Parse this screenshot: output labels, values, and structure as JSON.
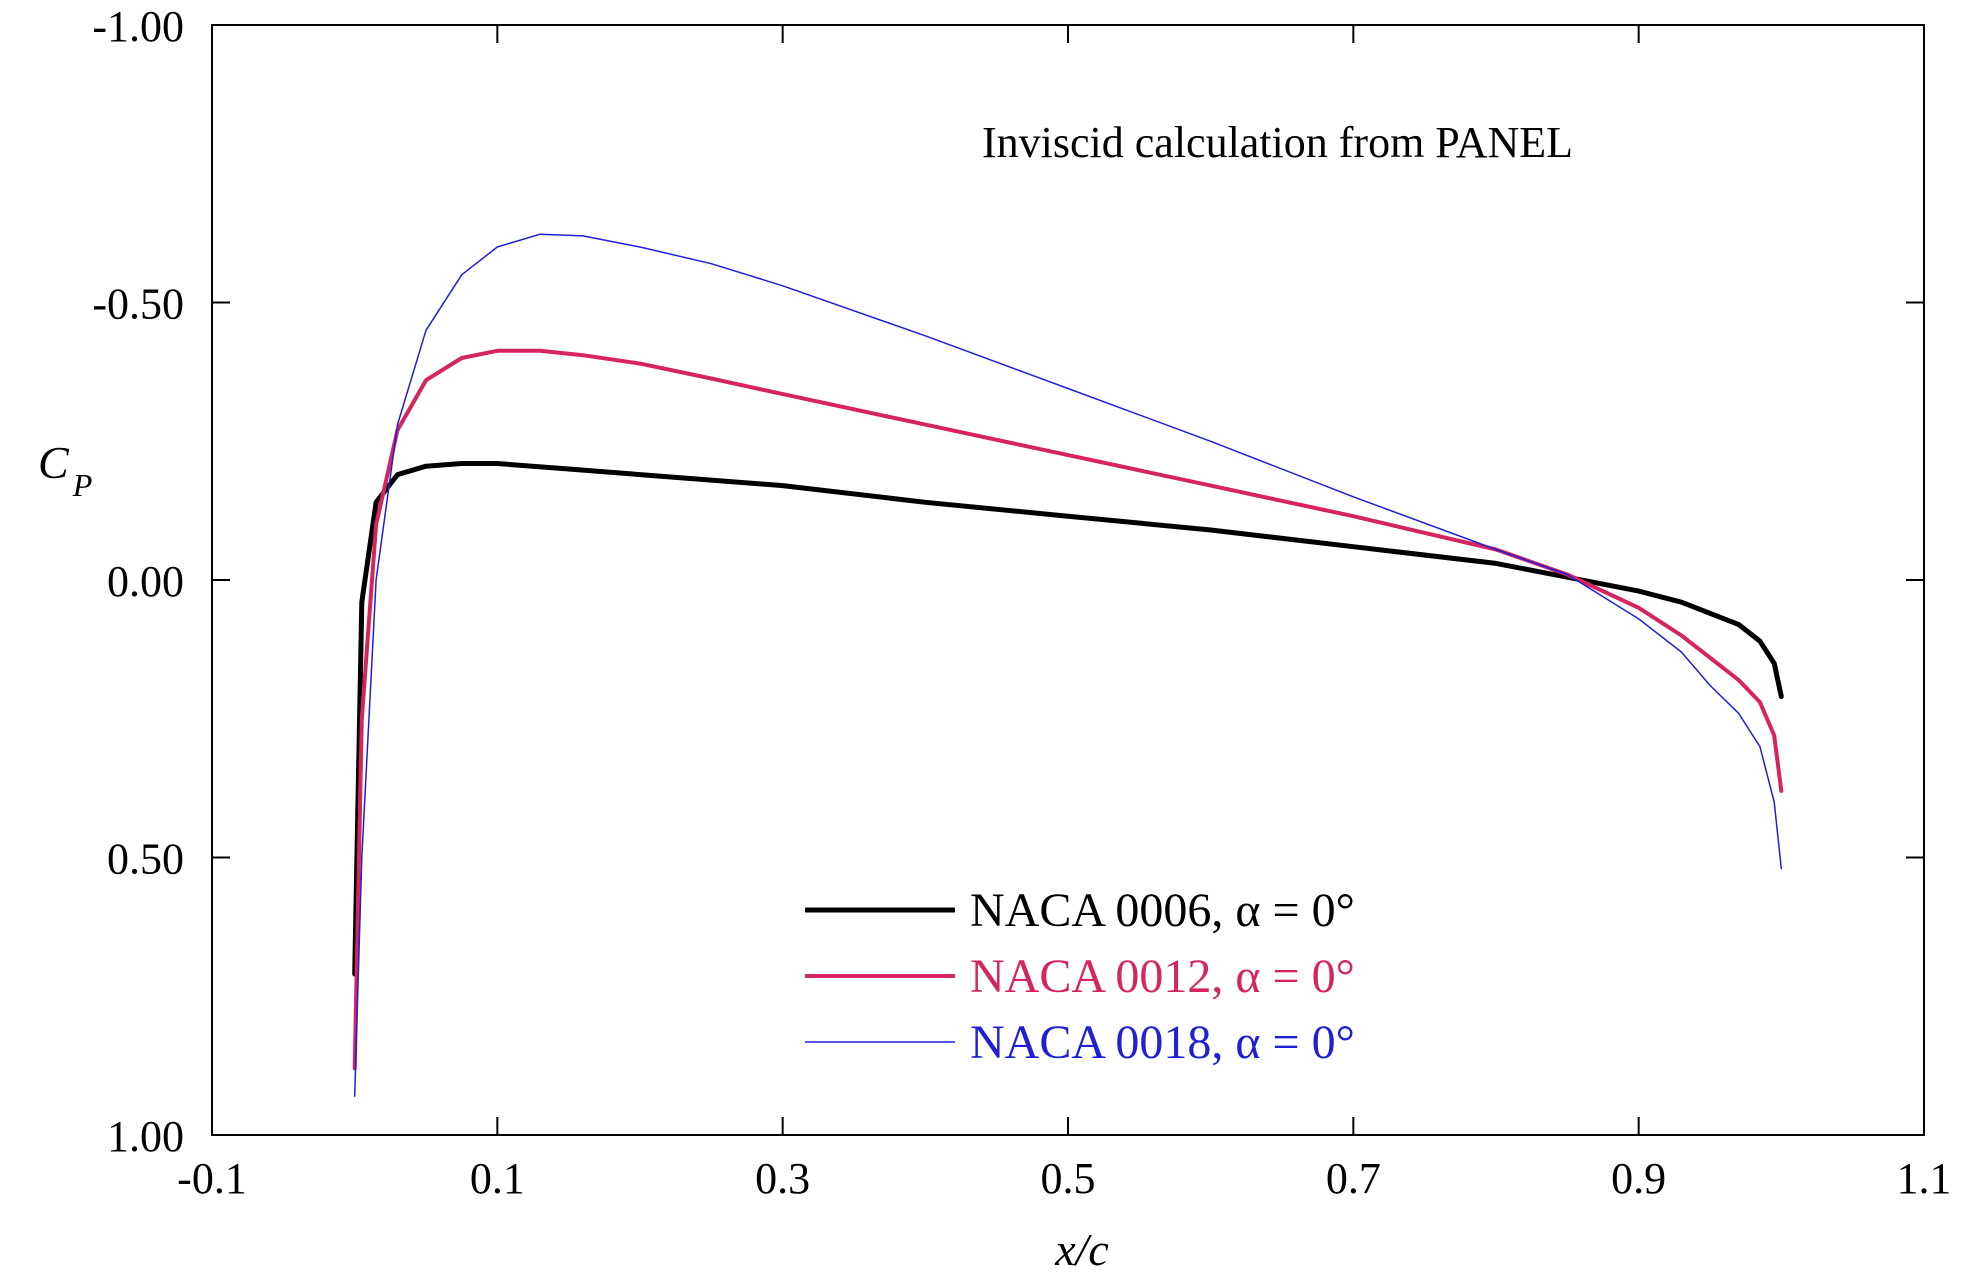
{
  "chart_data": {
    "type": "line",
    "title": "",
    "annotation": "Inviscid calculation from PANEL",
    "xlabel": "x/c",
    "ylabel_main": "C",
    "ylabel_sub": "P",
    "xlim": [
      -0.1,
      1.1
    ],
    "ylim": [
      1.0,
      -1.0
    ],
    "y_inverted": true,
    "grid": false,
    "legend_position": "bottom-center",
    "x_ticks": [
      -0.1,
      0.1,
      0.3,
      0.5,
      0.7,
      0.9,
      1.1
    ],
    "x_tick_labels": [
      "-0.1",
      "0.1",
      "0.3",
      "0.5",
      "0.7",
      "0.9",
      "1.1"
    ],
    "y_ticks": [
      -1.0,
      -0.5,
      0.0,
      0.5,
      1.0
    ],
    "y_tick_labels": [
      "-1.00",
      "-0.50",
      "0.00",
      "0.50",
      "1.00"
    ],
    "series": [
      {
        "name": "NACA 0006, α = 0°",
        "color": "#000000",
        "line_weight": "thick",
        "x": [
          0.0,
          0.005,
          0.015,
          0.03,
          0.05,
          0.075,
          0.1,
          0.15,
          0.2,
          0.3,
          0.4,
          0.5,
          0.6,
          0.7,
          0.8,
          0.85,
          0.9,
          0.93,
          0.95,
          0.97,
          0.985,
          0.995,
          1.0
        ],
        "values": [
          0.71,
          0.04,
          -0.14,
          -0.19,
          -0.205,
          -0.21,
          -0.21,
          -0.2,
          -0.19,
          -0.17,
          -0.14,
          -0.115,
          -0.09,
          -0.06,
          -0.03,
          -0.005,
          0.02,
          0.04,
          0.06,
          0.08,
          0.11,
          0.15,
          0.21
        ]
      },
      {
        "name": "NACA 0012, α = 0°",
        "color": "#d6245f",
        "line_weight": "medium",
        "x": [
          0.0,
          0.005,
          0.015,
          0.03,
          0.05,
          0.075,
          0.1,
          0.13,
          0.16,
          0.2,
          0.25,
          0.3,
          0.4,
          0.5,
          0.6,
          0.7,
          0.8,
          0.85,
          0.9,
          0.93,
          0.95,
          0.97,
          0.985,
          0.995,
          1.0
        ],
        "values": [
          0.88,
          0.25,
          -0.1,
          -0.27,
          -0.36,
          -0.4,
          -0.413,
          -0.413,
          -0.405,
          -0.39,
          -0.363,
          -0.335,
          -0.28,
          -0.225,
          -0.17,
          -0.115,
          -0.055,
          -0.01,
          0.05,
          0.1,
          0.14,
          0.18,
          0.22,
          0.28,
          0.38
        ]
      },
      {
        "name": "NACA 0018, α = 0°",
        "color": "#1f1fd6",
        "line_weight": "thin",
        "x": [
          0.0,
          0.005,
          0.015,
          0.03,
          0.05,
          0.075,
          0.1,
          0.13,
          0.16,
          0.2,
          0.25,
          0.3,
          0.4,
          0.5,
          0.6,
          0.7,
          0.8,
          0.85,
          0.9,
          0.93,
          0.95,
          0.97,
          0.985,
          0.995,
          1.0
        ],
        "values": [
          0.93,
          0.5,
          0.0,
          -0.28,
          -0.45,
          -0.55,
          -0.6,
          -0.623,
          -0.62,
          -0.6,
          -0.57,
          -0.53,
          -0.44,
          -0.345,
          -0.25,
          -0.15,
          -0.055,
          -0.01,
          0.07,
          0.13,
          0.19,
          0.24,
          0.3,
          0.4,
          0.52
        ]
      }
    ]
  }
}
